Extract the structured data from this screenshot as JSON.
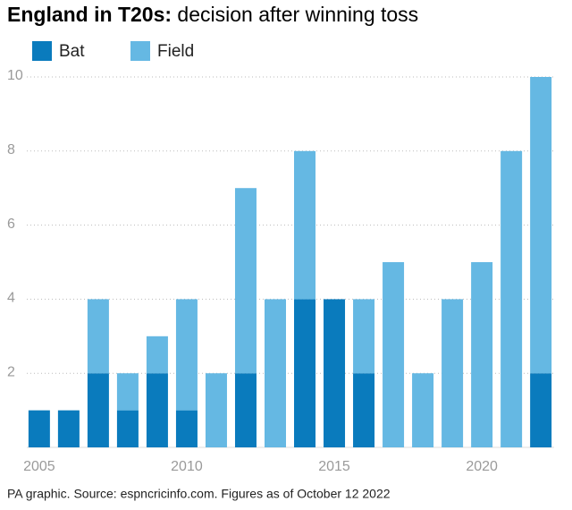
{
  "chart_data": {
    "type": "bar",
    "stacked": true,
    "title_lead": "England in T20s:",
    "title": "decision after winning toss",
    "source": "PA graphic. Source: espncricinfo.com. Figures as of October 12 2022",
    "x": [
      2005,
      2006,
      2007,
      2008,
      2009,
      2010,
      2011,
      2012,
      2013,
      2014,
      2015,
      2016,
      2017,
      2018,
      2019,
      2020,
      2021,
      2022
    ],
    "series": [
      {
        "name": "Bat",
        "color": "#0a7bbd",
        "values": [
          1,
          1,
          2,
          1,
          2,
          1,
          0,
          2,
          0,
          4,
          4,
          2,
          0,
          0,
          0,
          0,
          0,
          2
        ]
      },
      {
        "name": "Field",
        "color": "#65b8e3",
        "values": [
          0,
          0,
          2,
          1,
          1,
          3,
          2,
          5,
          4,
          4,
          0,
          2,
          5,
          2,
          4,
          5,
          8,
          8
        ]
      }
    ],
    "xlim": [
      2004.58,
      2022.45
    ],
    "xticks": [
      2005,
      2010,
      2015,
      2020
    ],
    "ylim": [
      0,
      10
    ],
    "yticks": [
      2,
      4,
      6,
      8,
      10
    ],
    "grid": true,
    "legend": "top-left"
  }
}
